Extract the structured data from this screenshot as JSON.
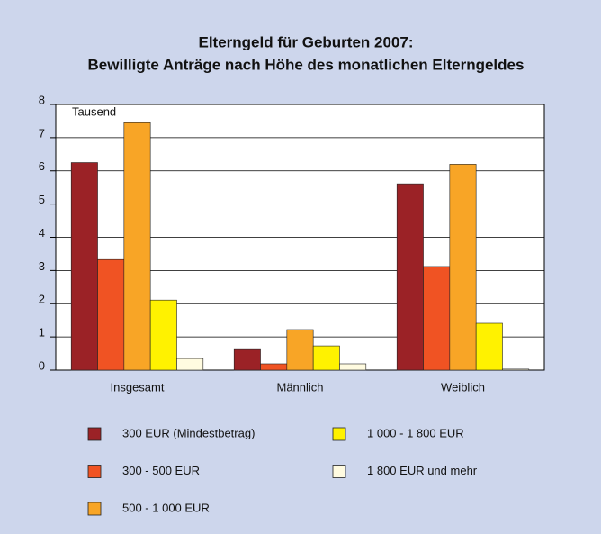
{
  "chart_data": {
    "type": "bar",
    "title": "Elterngeld für Geburten 2007:",
    "subtitle": "Bewilligte Anträge nach Höhe des monatlichen Elterngeldes",
    "y_label": "Tausend",
    "categories": [
      "Insgesamt",
      "Männlich",
      "Weiblich"
    ],
    "series": [
      {
        "name": "300 EUR (Mindestbetrag)",
        "color": "#9b2226",
        "values": [
          6.25,
          0.62,
          5.61
        ]
      },
      {
        "name": "300 - 500  EUR",
        "color": "#f05323",
        "values": [
          3.33,
          0.19,
          3.12
        ]
      },
      {
        "name": "500 - 1 000 EUR",
        "color": "#f8a526",
        "values": [
          7.45,
          1.22,
          6.2
        ]
      },
      {
        "name": "1 000 - 1 800 EUR",
        "color": "#fff200",
        "values": [
          2.11,
          0.73,
          1.41
        ]
      },
      {
        "name": "1 800 EUR und mehr",
        "color": "#fffbe0",
        "values": [
          0.35,
          0.19,
          0.03
        ]
      }
    ],
    "ylim": [
      0,
      8
    ],
    "yticks": [
      0,
      1,
      2,
      3,
      4,
      5,
      6,
      7,
      8
    ],
    "grid": true
  }
}
